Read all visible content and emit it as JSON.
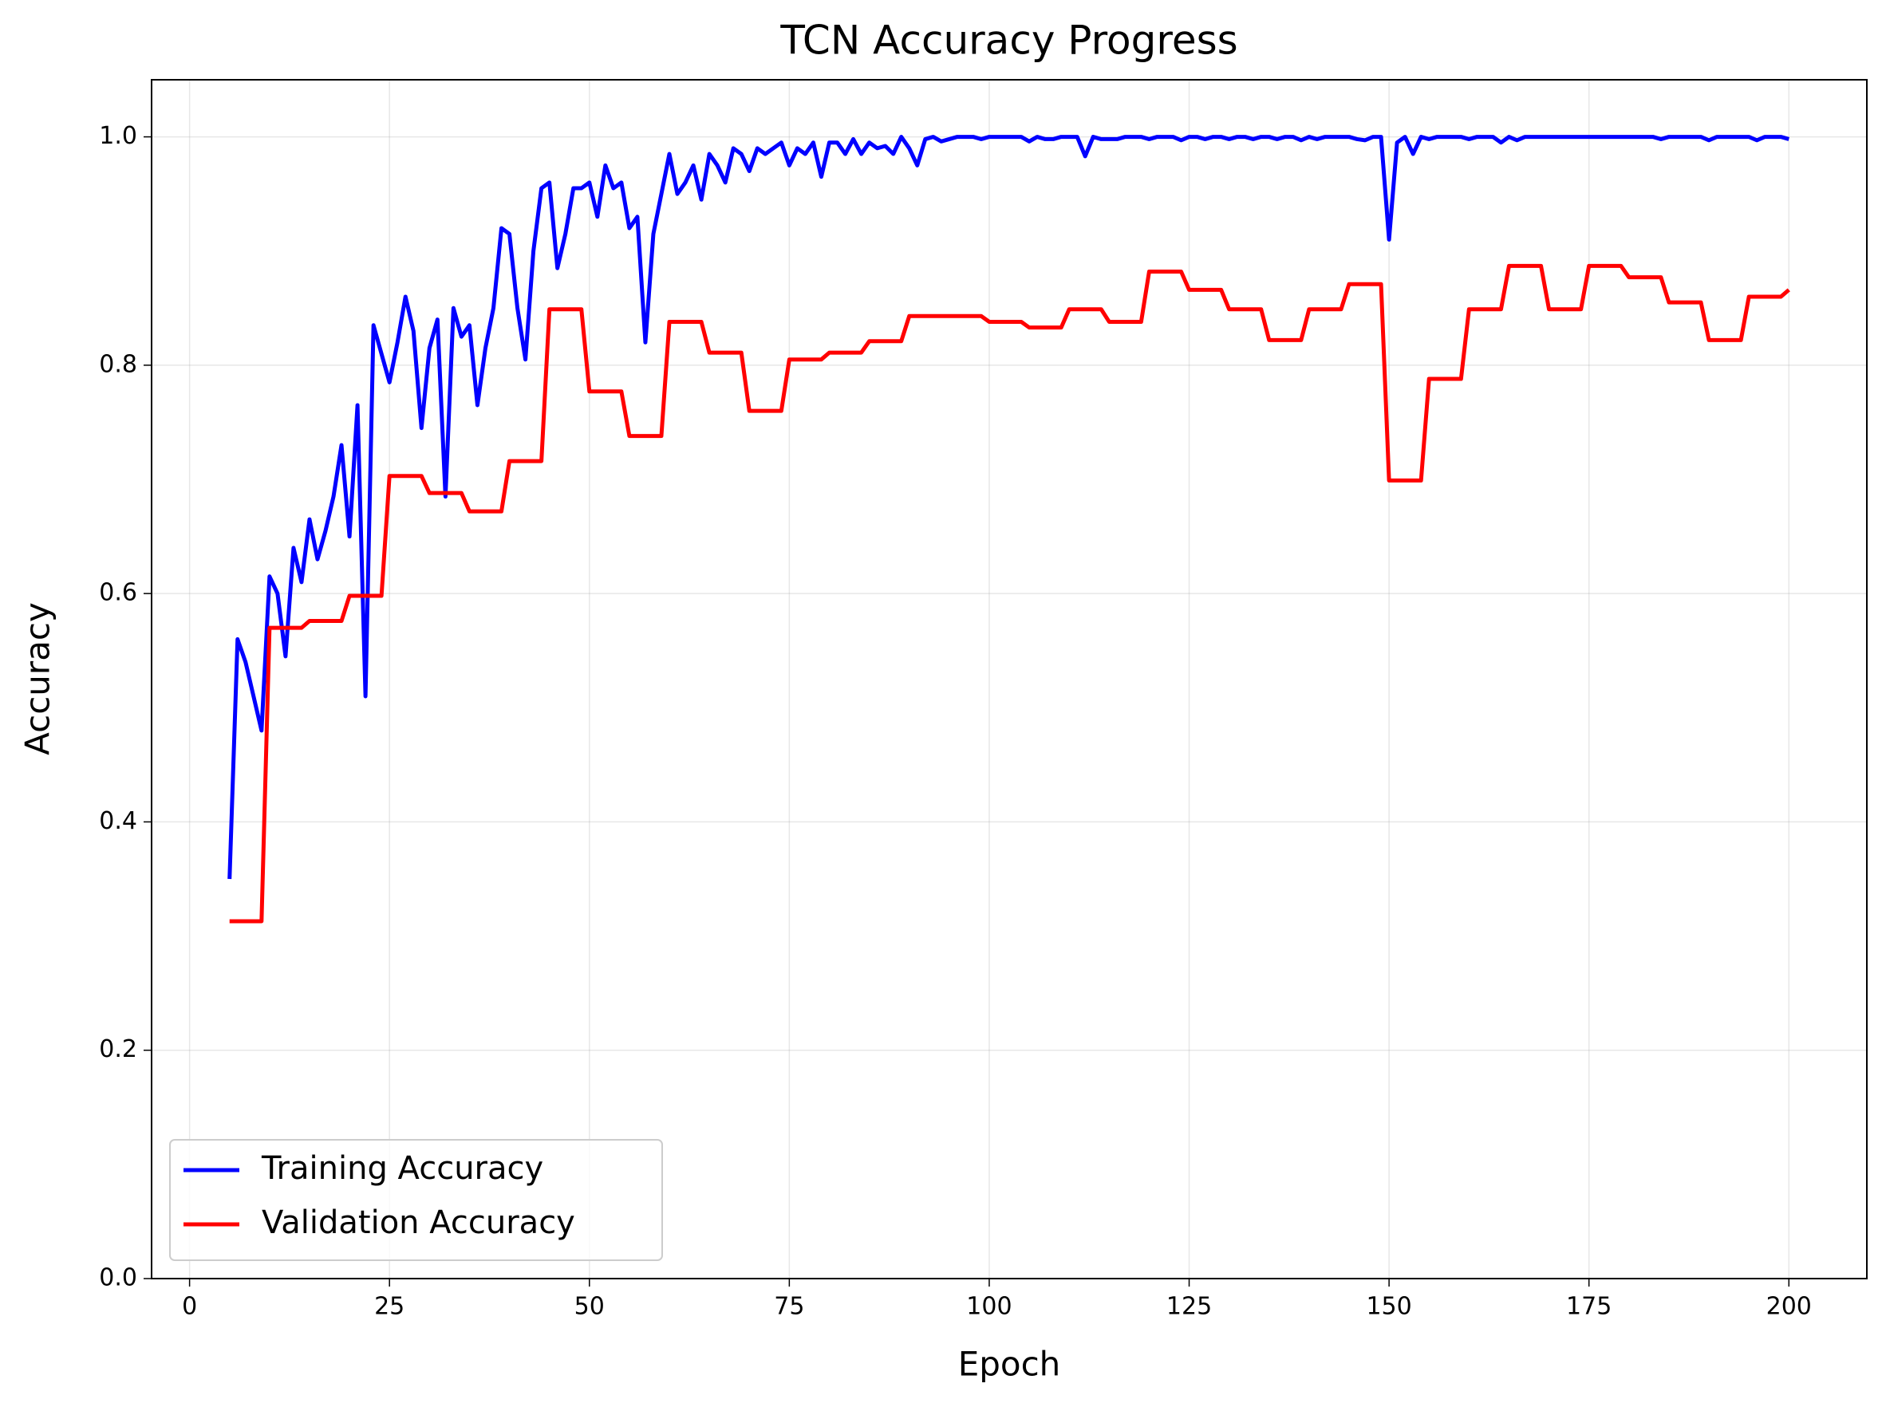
{
  "chart_data": {
    "type": "line",
    "title": "TCN Accuracy Progress",
    "x_label": "Epoch",
    "y_label": "Accuracy",
    "x": [
      5,
      6,
      7,
      8,
      9,
      10,
      11,
      12,
      13,
      14,
      15,
      16,
      17,
      18,
      19,
      20,
      21,
      22,
      23,
      24,
      25,
      26,
      27,
      28,
      29,
      30,
      31,
      32,
      33,
      34,
      35,
      36,
      37,
      38,
      39,
      40,
      41,
      42,
      43,
      44,
      45,
      46,
      47,
      48,
      49,
      50,
      51,
      52,
      53,
      54,
      55,
      56,
      57,
      58,
      59,
      60,
      61,
      62,
      63,
      64,
      65,
      66,
      67,
      68,
      69,
      70,
      71,
      72,
      73,
      74,
      75,
      76,
      77,
      78,
      79,
      80,
      81,
      82,
      83,
      84,
      85,
      86,
      87,
      88,
      89,
      90,
      91,
      92,
      93,
      94,
      95,
      96,
      97,
      98,
      99,
      100,
      101,
      102,
      103,
      104,
      105,
      106,
      107,
      108,
      109,
      110,
      111,
      112,
      113,
      114,
      115,
      116,
      117,
      118,
      119,
      120,
      121,
      122,
      123,
      124,
      125,
      126,
      127,
      128,
      129,
      130,
      131,
      132,
      133,
      134,
      135,
      136,
      137,
      138,
      139,
      140,
      141,
      142,
      143,
      144,
      145,
      146,
      147,
      148,
      149,
      150,
      151,
      152,
      153,
      154,
      155,
      156,
      157,
      158,
      159,
      160,
      161,
      162,
      163,
      164,
      165,
      166,
      167,
      168,
      169,
      170,
      171,
      172,
      173,
      174,
      175,
      176,
      177,
      178,
      179,
      180,
      181,
      182,
      183,
      184,
      185,
      186,
      187,
      188,
      189,
      190,
      191,
      192,
      193,
      194,
      195,
      196,
      197,
      198,
      199,
      200
    ],
    "series": [
      {
        "name": "Training Accuracy",
        "color": "#0000ff",
        "values": [
          0.35,
          0.56,
          0.54,
          0.51,
          0.48,
          0.615,
          0.6,
          0.545,
          0.64,
          0.61,
          0.665,
          0.63,
          0.655,
          0.685,
          0.73,
          0.65,
          0.765,
          0.51,
          0.835,
          0.81,
          0.785,
          0.82,
          0.86,
          0.83,
          0.745,
          0.815,
          0.84,
          0.685,
          0.85,
          0.825,
          0.835,
          0.765,
          0.815,
          0.85,
          0.92,
          0.915,
          0.85,
          0.805,
          0.9,
          0.955,
          0.96,
          0.885,
          0.915,
          0.955,
          0.955,
          0.96,
          0.93,
          0.975,
          0.955,
          0.96,
          0.92,
          0.93,
          0.82,
          0.915,
          0.95,
          0.985,
          0.95,
          0.96,
          0.975,
          0.945,
          0.985,
          0.975,
          0.96,
          0.99,
          0.985,
          0.97,
          0.99,
          0.985,
          0.99,
          0.995,
          0.975,
          0.99,
          0.985,
          0.995,
          0.965,
          0.995,
          0.995,
          0.985,
          0.998,
          0.985,
          0.995,
          0.99,
          0.992,
          0.985,
          1.0,
          0.99,
          0.975,
          0.998,
          1.0,
          0.996,
          0.998,
          1.0,
          1.0,
          1.0,
          0.998,
          1.0,
          1.0,
          1.0,
          1.0,
          1.0,
          0.996,
          1.0,
          0.998,
          0.998,
          1.0,
          1.0,
          1.0,
          0.983,
          1.0,
          0.998,
          0.998,
          0.998,
          1.0,
          1.0,
          1.0,
          0.998,
          1.0,
          1.0,
          1.0,
          0.997,
          1.0,
          1.0,
          0.998,
          1.0,
          1.0,
          0.998,
          1.0,
          1.0,
          0.998,
          1.0,
          1.0,
          0.998,
          1.0,
          1.0,
          0.997,
          1.0,
          0.998,
          1.0,
          1.0,
          1.0,
          1.0,
          0.998,
          0.997,
          1.0,
          1.0,
          0.91,
          0.995,
          1.0,
          0.985,
          1.0,
          0.998,
          1.0,
          1.0,
          1.0,
          1.0,
          0.998,
          1.0,
          1.0,
          1.0,
          0.995,
          1.0,
          0.997,
          1.0,
          1.0,
          1.0,
          1.0,
          1.0,
          1.0,
          1.0,
          1.0,
          1.0,
          1.0,
          1.0,
          1.0,
          1.0,
          1.0,
          1.0,
          1.0,
          1.0,
          0.998,
          1.0,
          1.0,
          1.0,
          1.0,
          1.0,
          0.997,
          1.0,
          1.0,
          1.0,
          1.0,
          1.0,
          0.997,
          1.0,
          1.0,
          1.0,
          0.998
        ]
      },
      {
        "name": "Validation Accuracy",
        "color": "#ff0000",
        "values": [
          0.313,
          0.313,
          0.313,
          0.313,
          0.313,
          0.57,
          0.57,
          0.57,
          0.57,
          0.57,
          0.576,
          0.576,
          0.576,
          0.576,
          0.576,
          0.598,
          0.598,
          0.598,
          0.598,
          0.598,
          0.703,
          0.703,
          0.703,
          0.703,
          0.703,
          0.688,
          0.688,
          0.688,
          0.688,
          0.688,
          0.672,
          0.672,
          0.672,
          0.672,
          0.672,
          0.716,
          0.716,
          0.716,
          0.716,
          0.716,
          0.849,
          0.849,
          0.849,
          0.849,
          0.849,
          0.777,
          0.777,
          0.777,
          0.777,
          0.777,
          0.738,
          0.738,
          0.738,
          0.738,
          0.738,
          0.838,
          0.838,
          0.838,
          0.838,
          0.838,
          0.811,
          0.811,
          0.811,
          0.811,
          0.811,
          0.76,
          0.76,
          0.76,
          0.76,
          0.76,
          0.805,
          0.805,
          0.805,
          0.805,
          0.805,
          0.811,
          0.811,
          0.811,
          0.811,
          0.811,
          0.821,
          0.821,
          0.821,
          0.821,
          0.821,
          0.843,
          0.843,
          0.843,
          0.843,
          0.843,
          0.843,
          0.843,
          0.843,
          0.843,
          0.843,
          0.838,
          0.838,
          0.838,
          0.838,
          0.838,
          0.833,
          0.833,
          0.833,
          0.833,
          0.833,
          0.849,
          0.849,
          0.849,
          0.849,
          0.849,
          0.838,
          0.838,
          0.838,
          0.838,
          0.838,
          0.882,
          0.882,
          0.882,
          0.882,
          0.882,
          0.866,
          0.866,
          0.866,
          0.866,
          0.866,
          0.849,
          0.849,
          0.849,
          0.849,
          0.849,
          0.822,
          0.822,
          0.822,
          0.822,
          0.822,
          0.849,
          0.849,
          0.849,
          0.849,
          0.849,
          0.871,
          0.871,
          0.871,
          0.871,
          0.871,
          0.699,
          0.699,
          0.699,
          0.699,
          0.699,
          0.788,
          0.788,
          0.788,
          0.788,
          0.788,
          0.849,
          0.849,
          0.849,
          0.849,
          0.849,
          0.887,
          0.887,
          0.887,
          0.887,
          0.887,
          0.849,
          0.849,
          0.849,
          0.849,
          0.849,
          0.887,
          0.887,
          0.887,
          0.887,
          0.887,
          0.877,
          0.877,
          0.877,
          0.877,
          0.877,
          0.855,
          0.855,
          0.855,
          0.855,
          0.855,
          0.822,
          0.822,
          0.822,
          0.822,
          0.822,
          0.86,
          0.86,
          0.86,
          0.86,
          0.86,
          0.866
        ]
      }
    ],
    "xlim": [
      -4.75,
      209.75
    ],
    "ylim": [
      0,
      1.05
    ],
    "xticks": [
      0,
      25,
      50,
      75,
      100,
      125,
      150,
      175,
      200
    ],
    "yticks": [
      {
        "value": 0,
        "label": "0.0"
      },
      0.2,
      0.4,
      0.6,
      0.8,
      {
        "value": 1,
        "label": "1.0"
      }
    ],
    "grid": true,
    "legend": "lower left"
  }
}
